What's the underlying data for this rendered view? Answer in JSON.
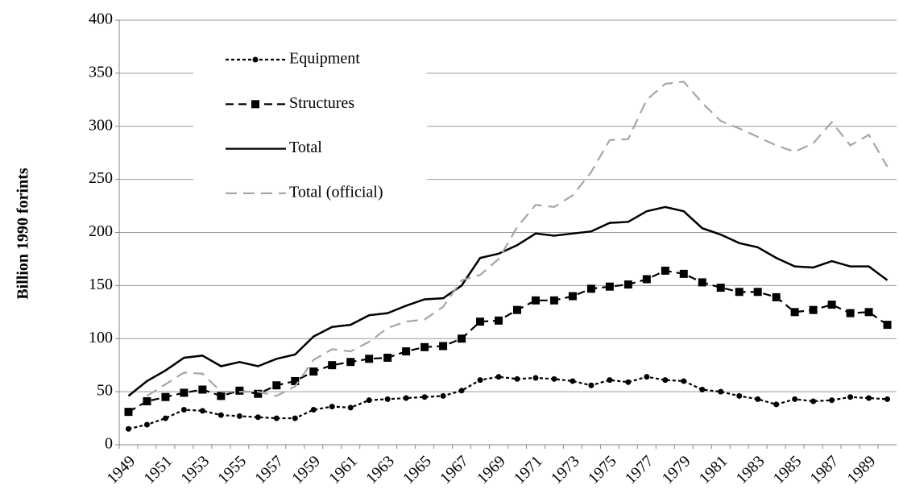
{
  "chart_data": {
    "type": "line",
    "y_label": "Billion 1990  forints",
    "categories": [
      "1949",
      null,
      "1951",
      null,
      "1953",
      null,
      "1955",
      null,
      "1957",
      null,
      "1959",
      null,
      "1961",
      null,
      "1963",
      null,
      "1965",
      null,
      "1967",
      null,
      "1969",
      null,
      "1971",
      null,
      "1973",
      null,
      "1975",
      null,
      "1977",
      null,
      "1979",
      null,
      "1981",
      null,
      "1983",
      null,
      "1985",
      null,
      "1987",
      null,
      "1989",
      null
    ],
    "series": [
      {
        "name": "Equipment",
        "color": "#000000",
        "dash": "4 3",
        "marker": "circle",
        "values": [
          15,
          19,
          25,
          33,
          32,
          28,
          27,
          26,
          25,
          25,
          33,
          36,
          35,
          42,
          43,
          44,
          45,
          46,
          51,
          61,
          64,
          62,
          63,
          62,
          60,
          56,
          61,
          59,
          64,
          61,
          60,
          52,
          50,
          46,
          43,
          38,
          43,
          41,
          42,
          45,
          44,
          43
        ]
      },
      {
        "name": "Structures",
        "color": "#000000",
        "dash": "10 6",
        "marker": "square",
        "values": [
          31,
          41,
          45,
          49,
          52,
          46,
          51,
          48,
          56,
          60,
          69,
          75,
          78,
          81,
          82,
          88,
          92,
          93,
          100,
          116,
          117,
          127,
          136,
          136,
          140,
          147,
          149,
          151,
          156,
          164,
          161,
          153,
          148,
          144,
          144,
          139,
          125,
          127,
          132,
          124,
          125,
          113
        ]
      },
      {
        "name": "Total",
        "color": "#000000",
        "dash": "none",
        "marker": "none",
        "values": [
          46,
          60,
          70,
          82,
          84,
          74,
          78,
          74,
          81,
          85,
          102,
          111,
          113,
          122,
          124,
          131,
          137,
          138,
          150,
          176,
          180,
          188,
          199,
          197,
          199,
          201,
          209,
          210,
          220,
          224,
          220,
          204,
          198,
          190,
          186,
          176,
          168,
          167,
          173,
          168,
          168,
          155
        ]
      },
      {
        "name": "Total (official)",
        "color": "#a6a6a6",
        "dash": "14 8",
        "marker": "none",
        "values": [
          null,
          46,
          57,
          68,
          67,
          50,
          50,
          50,
          46,
          55,
          80,
          90,
          88,
          97,
          110,
          116,
          118,
          130,
          155,
          160,
          175,
          205,
          226,
          224,
          235,
          257,
          287,
          288,
          325,
          340,
          342,
          322,
          305,
          298,
          290,
          282,
          276,
          284,
          304,
          282,
          292,
          262
        ]
      }
    ],
    "ylim": [
      0,
      400
    ],
    "yticks": [
      0,
      50,
      100,
      150,
      200,
      250,
      300,
      350,
      400
    ],
    "grid": true,
    "legend": "top-left"
  }
}
